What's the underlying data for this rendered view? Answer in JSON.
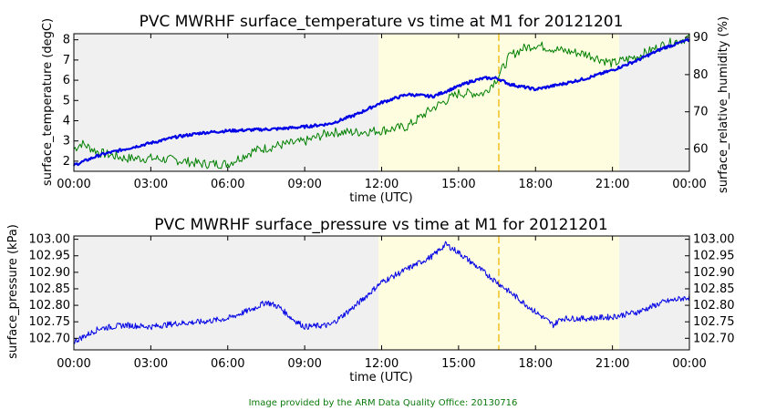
{
  "footer": "Image provided by the ARM Data Quality Office: 20130716",
  "colors": {
    "blue": "#0000e6",
    "green": "#008000",
    "night_shade": "#f0f0f0",
    "day_shade": "#fffde0",
    "marker": "#f0c020"
  },
  "chart_data": [
    {
      "type": "line",
      "title": "PVC MWRHF surface_temperature vs time at M1 for 20121201",
      "xlabel": "time (UTC)",
      "x_ticks": [
        "00:00",
        "03:00",
        "06:00",
        "09:00",
        "12:00",
        "15:00",
        "18:00",
        "21:00",
        "00:00"
      ],
      "xlim_hours": [
        0,
        24
      ],
      "ylabel_left": "surface_temperature (degC)",
      "ylim_left": [
        1.5,
        8.3
      ],
      "yticks_left": [
        "2",
        "3",
        "4",
        "5",
        "6",
        "7",
        "8"
      ],
      "ylabel_right": "surface_relative_humidity (%)",
      "ylim_right": [
        54,
        91
      ],
      "yticks_right": [
        "60",
        "70",
        "80",
        "90"
      ],
      "shading": {
        "daylight_hours": [
          11.8,
          21.1
        ],
        "marker_hour": 16.5
      },
      "series": [
        {
          "name": "surface_temperature",
          "axis": "left",
          "color": "#0000e6",
          "x": [
            0,
            1,
            2,
            3,
            4,
            5,
            6,
            7,
            8,
            9,
            10,
            11,
            12,
            13,
            14,
            15,
            15.5,
            16,
            16.5,
            17,
            18,
            19,
            20,
            21,
            22,
            23,
            24
          ],
          "y": [
            1.8,
            2.3,
            2.6,
            2.9,
            3.2,
            3.4,
            3.5,
            3.55,
            3.6,
            3.7,
            3.85,
            4.3,
            4.9,
            5.3,
            5.2,
            5.7,
            5.95,
            6.1,
            6.1,
            5.8,
            5.55,
            5.8,
            6.1,
            6.5,
            7.0,
            7.6,
            8.0
          ]
        },
        {
          "name": "surface_relative_humidity",
          "axis": "right",
          "color": "#008000",
          "x": [
            0,
            0.3,
            1,
            2,
            3,
            4,
            5,
            6,
            7,
            8,
            9,
            10,
            11,
            12,
            13,
            14,
            15,
            16,
            16.5,
            17,
            17.5,
            18,
            19,
            20,
            21,
            22,
            23,
            24
          ],
          "y": [
            60,
            61.5,
            59,
            57.5,
            57.5,
            57,
            56,
            56,
            59.5,
            61,
            62,
            64.5,
            64.5,
            65,
            66,
            71,
            75,
            75,
            79,
            85,
            87,
            88,
            86.5,
            85.5,
            83,
            85,
            88,
            90
          ]
        }
      ]
    },
    {
      "type": "line",
      "title": "PVC MWRHF surface_pressure vs time at M1 for 20121201",
      "xlabel": "time (UTC)",
      "x_ticks": [
        "00:00",
        "03:00",
        "06:00",
        "09:00",
        "12:00",
        "15:00",
        "18:00",
        "21:00",
        "00:00"
      ],
      "xlim_hours": [
        0,
        24
      ],
      "ylabel": "surface_pressure (kPa)",
      "ylim": [
        102.665,
        103.01
      ],
      "yticks": [
        "102.70",
        "102.75",
        "102.80",
        "102.85",
        "102.90",
        "102.95",
        "103.00"
      ],
      "shading": {
        "daylight_hours": [
          11.8,
          21.1
        ],
        "marker_hour": 16.5
      },
      "series": [
        {
          "name": "surface_pressure",
          "color": "#0000e6",
          "x": [
            0,
            0.5,
            1,
            2,
            3,
            4,
            5,
            6,
            7,
            7.5,
            8,
            8.5,
            9,
            10,
            11,
            12,
            13,
            14,
            14.5,
            15,
            16,
            17,
            18,
            18.7,
            19,
            20,
            21,
            22,
            23,
            24
          ],
          "y": [
            102.69,
            102.71,
            102.73,
            102.74,
            102.735,
            102.745,
            102.75,
            102.76,
            102.79,
            102.81,
            102.795,
            102.76,
            102.735,
            102.74,
            102.8,
            102.87,
            102.91,
            102.95,
            102.985,
            102.96,
            102.9,
            102.84,
            102.78,
            102.74,
            102.76,
            102.76,
            102.765,
            102.78,
            102.81,
            102.825
          ]
        }
      ]
    }
  ]
}
